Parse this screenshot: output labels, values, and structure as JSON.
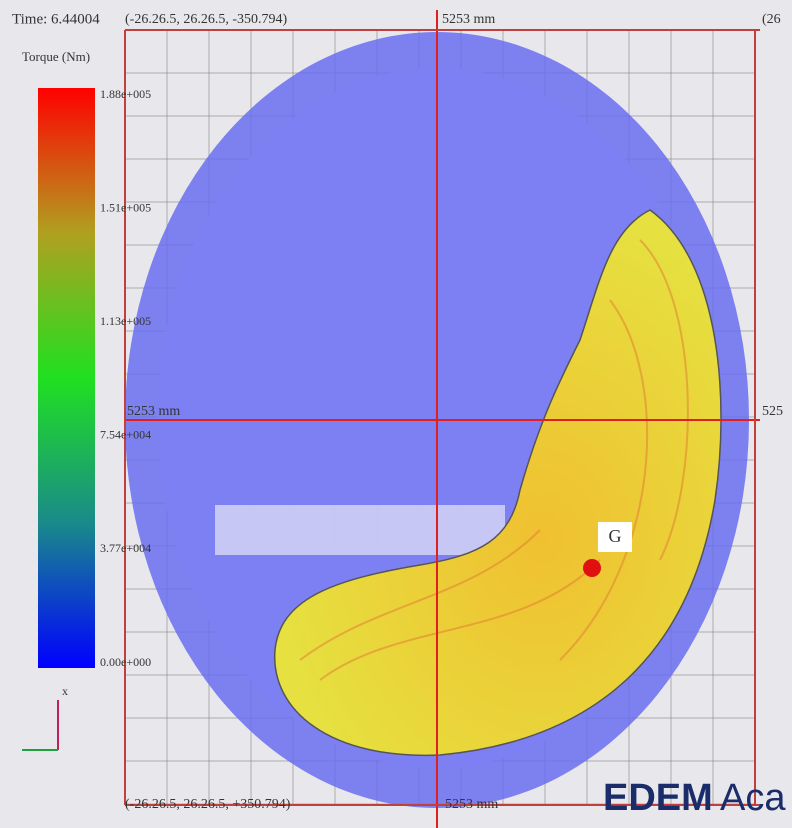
{
  "header": {
    "time": "Time: 6.44004",
    "legend_title": "Torque (Nm)"
  },
  "scale": {
    "labels": [
      "1.88e+005",
      "1.51e+005",
      "1.13e+005",
      "7.54e+004",
      "3.77e+004",
      "0.00e+000"
    ]
  },
  "coordinates": {
    "top_left": "(-26.26.5, 26.26.5, -350.794)",
    "top_center": "5253 mm",
    "top_right": "(26",
    "left_center": "5253 mm",
    "right_center": "525",
    "bottom_left": "(-26.26.5, 26.26.5, +350.794)",
    "bottom_center": "5253 mm"
  },
  "marker": {
    "label": "G"
  },
  "axis": {
    "x": "x"
  },
  "logo": {
    "brand": "EDEM",
    "suffix": "Aca"
  }
}
